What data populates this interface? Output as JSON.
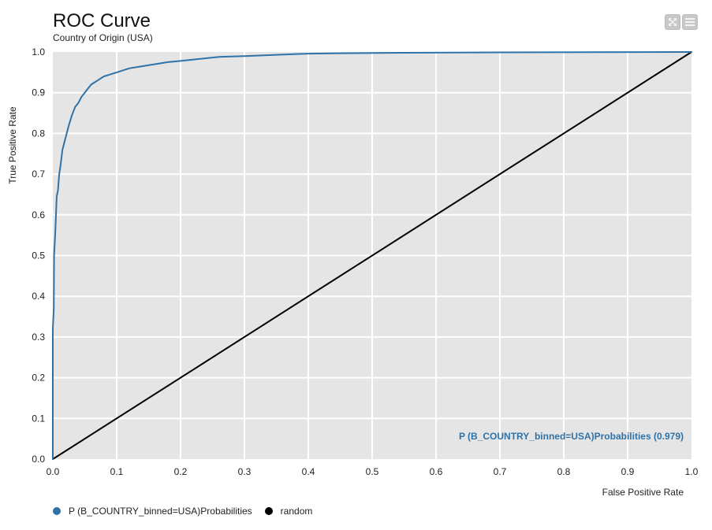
{
  "header": {
    "title": "ROC Curve",
    "subtitle": "Country of Origin (USA)"
  },
  "toolbar": {
    "buttons": [
      {
        "icon": "expand-icon"
      },
      {
        "icon": "menu-icon"
      }
    ]
  },
  "colors": {
    "plot_background": "#e5e5e5",
    "grid": "#ffffff",
    "roc_series": "#2f72a8",
    "random_series": "#000000"
  },
  "chart_data": {
    "type": "line",
    "title": "ROC Curve",
    "subtitle": "Country of Origin (USA)",
    "xlabel": "False Positive Rate",
    "ylabel": "True Positive Rate",
    "xlim": [
      0.0,
      1.0
    ],
    "ylim": [
      0.0,
      1.0
    ],
    "xticks": [
      "0.0",
      "0.1",
      "0.2",
      "0.3",
      "0.4",
      "0.5",
      "0.6",
      "0.7",
      "0.8",
      "0.9",
      "1.0"
    ],
    "yticks": [
      "0.0",
      "0.1",
      "0.2",
      "0.3",
      "0.4",
      "0.5",
      "0.6",
      "0.7",
      "0.8",
      "0.9",
      "1.0"
    ],
    "grid": true,
    "legend_position": "bottom-left",
    "annotation": "P (B_COUNTRY_binned=USA)Probabilities (0.979)",
    "series": [
      {
        "name": "P (B_COUNTRY_binned=USA)Probabilities",
        "color": "#2f72a8",
        "x": [
          0.0,
          0.0,
          0.0015,
          0.002,
          0.003,
          0.004,
          0.005,
          0.006,
          0.008,
          0.01,
          0.012,
          0.015,
          0.02,
          0.025,
          0.03,
          0.035,
          0.04,
          0.045,
          0.05,
          0.055,
          0.06,
          0.07,
          0.08,
          0.09,
          0.1,
          0.12,
          0.14,
          0.16,
          0.18,
          0.2,
          0.23,
          0.26,
          0.3,
          0.35,
          0.4,
          0.45,
          0.55,
          0.7,
          0.85,
          1.0
        ],
        "y": [
          0.0,
          0.32,
          0.37,
          0.5,
          0.53,
          0.56,
          0.6,
          0.645,
          0.66,
          0.7,
          0.72,
          0.76,
          0.79,
          0.82,
          0.845,
          0.865,
          0.875,
          0.89,
          0.9,
          0.91,
          0.92,
          0.93,
          0.94,
          0.945,
          0.95,
          0.96,
          0.965,
          0.97,
          0.975,
          0.978,
          0.983,
          0.988,
          0.99,
          0.993,
          0.996,
          0.997,
          0.998,
          0.999,
          0.9995,
          1.0
        ]
      },
      {
        "name": "random",
        "color": "#000000",
        "x": [
          0.0,
          1.0
        ],
        "y": [
          0.0,
          1.0
        ]
      }
    ]
  }
}
